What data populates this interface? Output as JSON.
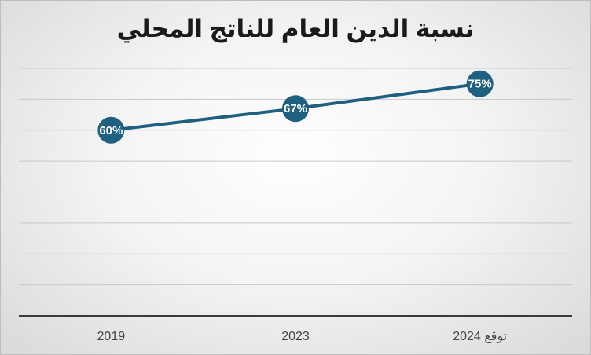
{
  "chart_data": {
    "type": "line",
    "title": "نسبة الدين العام للناتج المحلي",
    "categories": [
      "2019",
      "2023",
      "2024 توقع"
    ],
    "values": [
      60,
      67,
      75
    ],
    "data_labels": [
      "60%",
      "67%",
      "75%"
    ],
    "xlabel": "",
    "ylabel": "",
    "ylim": [
      0,
      80
    ],
    "grid": true,
    "legend": "none",
    "colors": {
      "line": "#1f5f80",
      "marker": "#1f5f80",
      "grid": "#c8c8c8",
      "axis": "#3a3a3a",
      "label_text": "#ffffff"
    }
  }
}
